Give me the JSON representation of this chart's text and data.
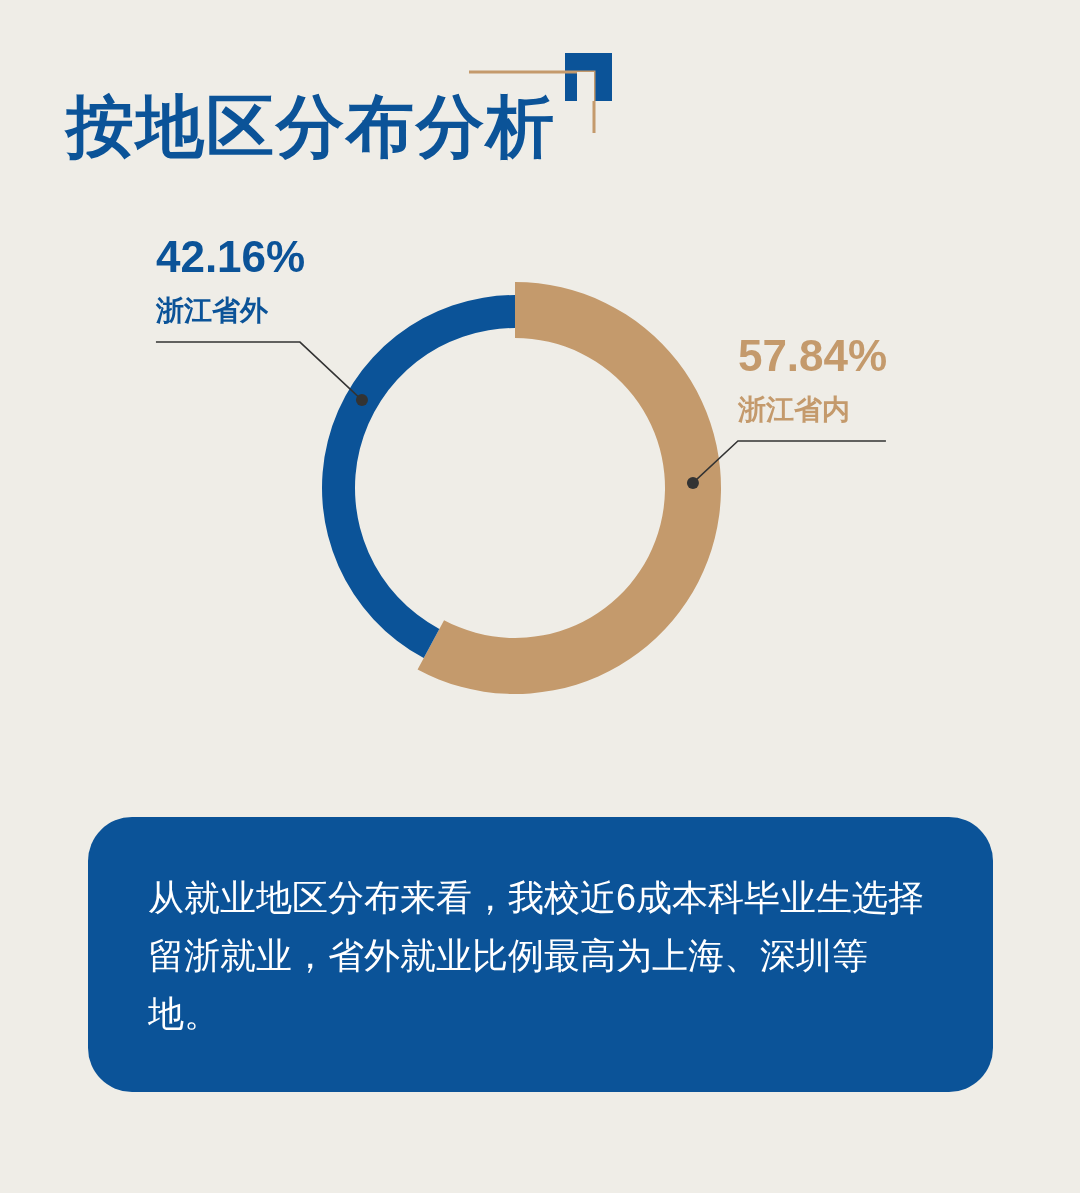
{
  "chart_data": {
    "type": "donut",
    "title": "按地区分布分析",
    "categories": [
      "浙江省内",
      "浙江省外"
    ],
    "values": [
      57.84,
      42.16
    ],
    "colors": [
      "#c49a6c",
      "#0b5398"
    ],
    "value_labels": [
      "57.84%",
      "42.16%"
    ],
    "annotations": [
      "从就业地区分布来看，我校近6成本科毕业生选择留浙就业，省外就业比例最高为上海、深圳等地。"
    ]
  }
}
